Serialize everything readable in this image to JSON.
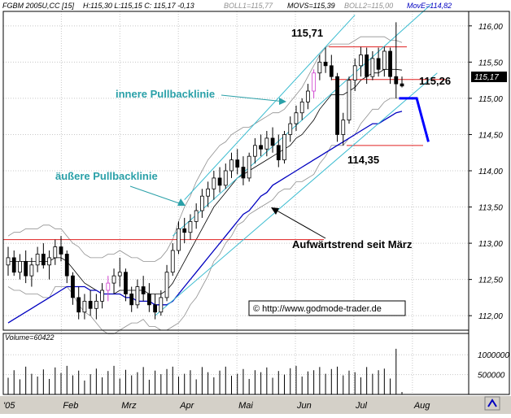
{
  "header": {
    "symbol": "FGBM 2005U,CC [15]",
    "ohlc": "H:115,30 L:115,15 C: 115,17 -0,13",
    "boll1": "BOLL1=115,77",
    "movs": "MOVS=115,39",
    "boll2": "BOLL2=115,00",
    "move": "MovE=114,82"
  },
  "colors": {
    "background": "#ffffff",
    "grid": "#c8c8c8",
    "candle": "#000000",
    "candle_highlight": "#d040d0",
    "trendline": "#3bbcd0",
    "resistance": "#e02020",
    "bollinger": "#909090",
    "ema": "#0000c0",
    "forecast": "#0000ff",
    "annotation_blue": "#2aa0a8",
    "axis_panel": "#d4d0c8"
  },
  "chart_data": [
    {
      "type": "candlestick",
      "title": "FGBM 2005U,CC [15]",
      "xlabel": "",
      "ylabel": "",
      "x_labels": [
        "'05",
        "Feb",
        "Mrz",
        "Apr",
        "Mai",
        "Jun",
        "Jul",
        "Aug"
      ],
      "y_ticks": [
        "112,00",
        "112,50",
        "113,00",
        "113,50",
        "114,00",
        "114,50",
        "115,00",
        "115,50",
        "116,00"
      ],
      "ylim": [
        111.8,
        116.2
      ],
      "grid": true,
      "last_price_label": "115,17",
      "series": [
        {
          "name": "FGBM 2005U",
          "ohlc": [
            [
              112.7,
              112.95,
              112.55,
              112.8
            ],
            [
              112.8,
              112.9,
              112.55,
              112.6
            ],
            [
              112.6,
              112.85,
              112.5,
              112.75
            ],
            [
              112.75,
              112.9,
              112.45,
              112.55
            ],
            [
              112.55,
              112.8,
              112.4,
              112.7
            ],
            [
              112.7,
              112.95,
              112.6,
              112.85
            ],
            [
              112.85,
              113.0,
              112.65,
              112.7
            ],
            [
              112.7,
              112.9,
              112.5,
              112.8
            ],
            [
              112.8,
              113.05,
              112.7,
              112.95
            ],
            [
              112.95,
              113.1,
              112.75,
              112.85
            ],
            [
              112.85,
              112.9,
              112.45,
              112.55
            ],
            [
              112.55,
              112.6,
              112.15,
              112.25
            ],
            [
              112.25,
              112.4,
              111.95,
              112.05
            ],
            [
              112.05,
              112.3,
              111.95,
              112.2
            ],
            [
              112.2,
              112.35,
              112.0,
              112.1
            ],
            [
              112.1,
              112.3,
              111.95,
              112.2
            ],
            [
              112.2,
              112.45,
              112.1,
              112.35
            ],
            [
              112.35,
              112.55,
              112.2,
              112.45
            ],
            [
              112.45,
              112.65,
              112.3,
              112.55
            ],
            [
              112.55,
              112.8,
              112.4,
              112.6
            ],
            [
              112.6,
              112.65,
              112.2,
              112.3
            ],
            [
              112.3,
              112.4,
              112.05,
              112.15
            ],
            [
              112.15,
              112.5,
              112.1,
              112.4
            ],
            [
              112.4,
              112.55,
              112.2,
              112.3
            ],
            [
              112.3,
              112.45,
              112.05,
              112.15
            ],
            [
              112.15,
              112.3,
              111.95,
              112.05
            ],
            [
              112.05,
              112.35,
              112.0,
              112.25
            ],
            [
              112.25,
              112.7,
              112.2,
              112.6
            ],
            [
              112.6,
              113.0,
              112.55,
              112.9
            ],
            [
              112.9,
              113.3,
              112.85,
              113.2
            ],
            [
              113.2,
              113.35,
              113.0,
              113.15
            ],
            [
              113.15,
              113.4,
              113.05,
              113.3
            ],
            [
              113.3,
              113.55,
              113.2,
              113.45
            ],
            [
              113.45,
              113.75,
              113.35,
              113.65
            ],
            [
              113.65,
              113.85,
              113.5,
              113.75
            ],
            [
              113.75,
              114.0,
              113.6,
              113.9
            ],
            [
              113.9,
              114.05,
              113.7,
              113.8
            ],
            [
              113.8,
              114.1,
              113.75,
              114.0
            ],
            [
              114.0,
              114.25,
              113.9,
              114.15
            ],
            [
              114.15,
              114.3,
              113.95,
              114.05
            ],
            [
              114.05,
              114.2,
              113.8,
              113.9
            ],
            [
              113.9,
              114.25,
              113.85,
              114.2
            ],
            [
              114.2,
              114.45,
              114.1,
              114.35
            ],
            [
              114.35,
              114.5,
              114.2,
              114.3
            ],
            [
              114.3,
              114.55,
              114.2,
              114.45
            ],
            [
              114.45,
              114.6,
              114.25,
              114.35
            ],
            [
              114.35,
              114.5,
              114.05,
              114.15
            ],
            [
              114.15,
              114.55,
              114.1,
              114.5
            ],
            [
              114.5,
              114.75,
              114.4,
              114.65
            ],
            [
              114.65,
              114.9,
              114.55,
              114.8
            ],
            [
              114.8,
              115.0,
              114.7,
              114.95
            ],
            [
              114.95,
              115.2,
              114.85,
              115.1
            ],
            [
              115.1,
              115.4,
              115.0,
              115.35
            ],
            [
              115.35,
              115.6,
              115.25,
              115.5
            ],
            [
              115.5,
              115.7,
              115.35,
              115.45
            ],
            [
              115.45,
              115.6,
              115.25,
              115.3
            ],
            [
              115.3,
              115.35,
              114.4,
              114.5
            ],
            [
              114.5,
              114.8,
              114.35,
              114.7
            ],
            [
              114.7,
              115.3,
              114.65,
              115.25
            ],
            [
              115.25,
              115.55,
              115.1,
              115.45
            ],
            [
              115.45,
              115.71,
              115.3,
              115.6
            ],
            [
              115.6,
              115.7,
              115.2,
              115.3
            ],
            [
              115.3,
              115.65,
              115.25,
              115.55
            ],
            [
              115.55,
              115.7,
              115.3,
              115.4
            ],
            [
              115.4,
              115.71,
              115.3,
              115.65
            ],
            [
              115.65,
              115.7,
              115.2,
              115.3
            ],
            [
              115.3,
              116.05,
              115.0,
              115.2
            ],
            [
              115.2,
              115.3,
              115.15,
              115.17
            ]
          ]
        },
        {
          "name": "BOLL1",
          "values": [
            113.1,
            113.15,
            113.15,
            113.2,
            113.2,
            113.2,
            113.25,
            113.25,
            113.2,
            113.2,
            113.1,
            113.0,
            112.95,
            112.85,
            112.8,
            112.8,
            112.8,
            112.85,
            112.85,
            112.9,
            112.85,
            112.8,
            112.8,
            112.75,
            112.75,
            112.75,
            112.8,
            112.9,
            113.05,
            113.3,
            113.5,
            113.65,
            113.85,
            114.0,
            114.15,
            114.25,
            114.35,
            114.4,
            114.5,
            114.55,
            114.6,
            114.6,
            114.65,
            114.7,
            114.75,
            114.8,
            114.8,
            114.85,
            114.95,
            115.05,
            115.15,
            115.3,
            115.45,
            115.6,
            115.7,
            115.75,
            115.75,
            115.75,
            115.75,
            115.8,
            115.85,
            115.85,
            115.85,
            115.85,
            115.85,
            115.8,
            115.8,
            115.77
          ]
        },
        {
          "name": "MOVS",
          "values": [
            112.75,
            112.75,
            112.75,
            112.75,
            112.75,
            112.75,
            112.75,
            112.75,
            112.8,
            112.8,
            112.75,
            112.65,
            112.55,
            112.45,
            112.4,
            112.35,
            112.3,
            112.3,
            112.3,
            112.35,
            112.35,
            112.35,
            112.35,
            112.35,
            112.3,
            112.3,
            112.3,
            112.35,
            112.45,
            112.6,
            112.75,
            112.9,
            113.05,
            113.2,
            113.35,
            113.5,
            113.6,
            113.7,
            113.8,
            113.9,
            113.95,
            114.0,
            114.05,
            114.1,
            114.15,
            114.2,
            114.25,
            114.3,
            114.35,
            114.45,
            114.5,
            114.6,
            114.7,
            114.85,
            114.95,
            115.05,
            115.05,
            115.05,
            115.1,
            115.15,
            115.25,
            115.3,
            115.35,
            115.35,
            115.4,
            115.4,
            115.4,
            115.39
          ]
        },
        {
          "name": "BOLL2",
          "values": [
            112.4,
            112.35,
            112.35,
            112.3,
            112.3,
            112.3,
            112.25,
            112.25,
            112.4,
            112.4,
            112.4,
            112.3,
            112.15,
            112.05,
            112.0,
            111.9,
            111.8,
            111.75,
            111.75,
            111.8,
            111.85,
            111.9,
            111.9,
            111.95,
            111.85,
            111.85,
            111.8,
            111.8,
            111.85,
            111.9,
            112.0,
            112.15,
            112.25,
            112.4,
            112.55,
            112.75,
            112.85,
            113.0,
            113.1,
            113.25,
            113.3,
            113.4,
            113.45,
            113.5,
            113.55,
            113.6,
            113.7,
            113.75,
            113.75,
            113.85,
            113.85,
            113.9,
            113.95,
            114.1,
            114.2,
            114.35,
            114.35,
            114.35,
            114.45,
            114.5,
            114.65,
            114.75,
            114.85,
            114.85,
            114.95,
            115.0,
            115.0,
            115.0
          ]
        },
        {
          "name": "MovE",
          "values": [
            111.9,
            111.95,
            112.0,
            112.05,
            112.1,
            112.15,
            112.2,
            112.25,
            112.3,
            112.35,
            112.4,
            112.4,
            112.4,
            112.4,
            112.35,
            112.35,
            112.3,
            112.3,
            112.3,
            112.3,
            112.25,
            112.25,
            112.2,
            112.2,
            112.2,
            112.15,
            112.15,
            112.15,
            112.2,
            112.3,
            112.4,
            112.5,
            112.6,
            112.7,
            112.8,
            112.9,
            113.0,
            113.1,
            113.2,
            113.3,
            113.4,
            113.45,
            113.55,
            113.65,
            113.7,
            113.8,
            113.85,
            113.9,
            113.95,
            114.0,
            114.05,
            114.1,
            114.15,
            114.2,
            114.25,
            114.3,
            114.35,
            114.4,
            114.45,
            114.5,
            114.55,
            114.6,
            114.65,
            114.65,
            114.7,
            114.75,
            114.8,
            114.82
          ]
        }
      ],
      "levels": [
        {
          "label": "115,71",
          "value": 115.71
        },
        {
          "label": "115,26",
          "value": 115.26
        },
        {
          "label": "114,35",
          "value": 114.35
        },
        {
          "value": 113.05
        }
      ],
      "annotations": [
        {
          "text": "innere Pullbacklinie"
        },
        {
          "text": "äußere Pullbacklinie"
        },
        {
          "text": "Aufwärtstrend seit März"
        }
      ],
      "watermark": "© http://www.godmode-trader.de"
    },
    {
      "type": "bar",
      "title": "Volume=60422",
      "y_ticks": [
        "1000000",
        "500000"
      ],
      "ylim": [
        0,
        1250000
      ],
      "values": [
        420000,
        610000,
        380000,
        700000,
        520000,
        450000,
        630000,
        390000,
        680000,
        540000,
        720000,
        480000,
        600000,
        350000,
        510000,
        650000,
        430000,
        590000,
        720000,
        400000,
        620000,
        480000,
        560000,
        690000,
        370000,
        600000,
        510000,
        640000,
        700000,
        450000,
        520000,
        610000,
        380000,
        690000,
        560000,
        430000,
        600000,
        700000,
        470000,
        520000,
        640000,
        390000,
        610000,
        560000,
        680000,
        420000,
        590000,
        500000,
        660000,
        720000,
        450000,
        580000,
        610000,
        690000,
        520000,
        640000,
        700000,
        480000,
        600000,
        560000,
        430000,
        690000,
        520000,
        610000,
        650000,
        400000,
        1150000,
        60422
      ]
    }
  ]
}
